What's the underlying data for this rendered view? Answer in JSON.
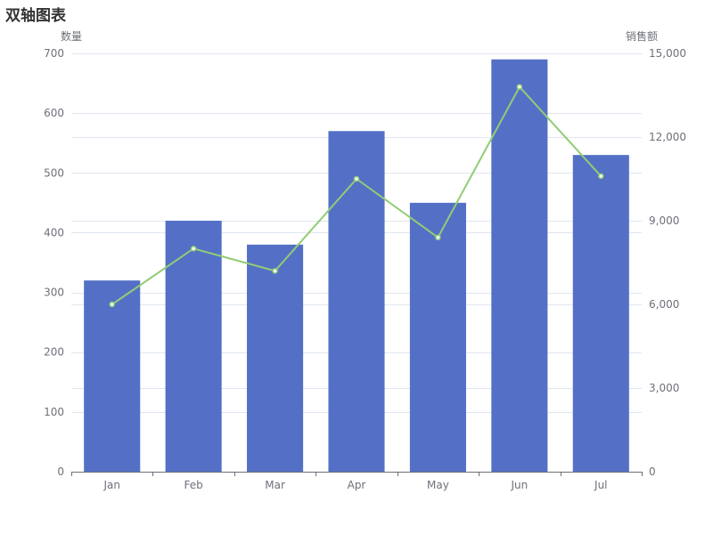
{
  "chart_data": {
    "type": "bar",
    "title": "双轴图表",
    "categories": [
      "Jan",
      "Feb",
      "Mar",
      "Apr",
      "May",
      "Jun",
      "Jul"
    ],
    "y_left": {
      "label": "数量",
      "range": [
        0,
        700
      ],
      "ticks": [
        0,
        100,
        200,
        300,
        400,
        500,
        600,
        700
      ],
      "tick_labels": [
        "0",
        "100",
        "200",
        "300",
        "400",
        "500",
        "600",
        "700"
      ]
    },
    "y_right": {
      "label": "销售额",
      "range": [
        0,
        15000
      ],
      "ticks": [
        0,
        3000,
        6000,
        9000,
        12000,
        15000
      ],
      "tick_labels": [
        "0",
        "3,000",
        "6,000",
        "9,000",
        "12,000",
        "15,000"
      ]
    },
    "series": [
      {
        "type": "bar",
        "axis": "left",
        "color": "#5470c6",
        "values": [
          320,
          420,
          380,
          570,
          450,
          690,
          530
        ]
      },
      {
        "type": "line",
        "axis": "right",
        "color": "#91cc75",
        "values": [
          6000,
          8000,
          7200,
          10500,
          8400,
          13800,
          10600
        ]
      }
    ],
    "grid": true,
    "legend": "none"
  }
}
